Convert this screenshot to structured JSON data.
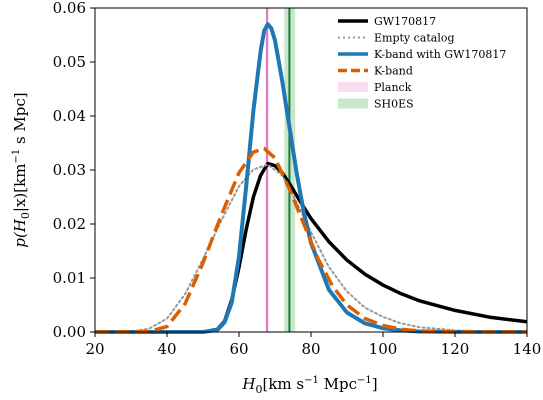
{
  "chart_data": {
    "type": "line",
    "xlabel": "H_0[km s^-1 Mpc^-1]",
    "xlabel_parts": {
      "main": "H",
      "sub": "0",
      "bracket": "[km s",
      "exp1": "−1",
      "mid": " Mpc",
      "exp2": "−1",
      "end": "]"
    },
    "ylabel": "p(H_0|x)[km^-1 s Mpc]",
    "ylabel_parts": {
      "pre": "p(H",
      "sub": "0",
      "mid": "|x)[km",
      "exp": "−1",
      "post": " s Mpc]"
    },
    "xlim": [
      20,
      140
    ],
    "ylim": [
      0,
      0.06
    ],
    "xticks": [
      20,
      40,
      60,
      80,
      100,
      120,
      140
    ],
    "xtick_labels": [
      "20",
      "40",
      "60",
      "80",
      "100",
      "120",
      "140"
    ],
    "yticks": [
      0.0,
      0.01,
      0.02,
      0.03,
      0.04,
      0.05,
      0.06
    ],
    "ytick_labels": [
      "0.00",
      "0.01",
      "0.02",
      "0.03",
      "0.04",
      "0.05",
      "0.06"
    ],
    "grid": false,
    "legend_position": "top-right",
    "bands": [
      {
        "name": "Planck",
        "range": [
          67.4,
          68.2
        ],
        "center": 67.8,
        "color": "#e377c2",
        "fill_alpha": 0.25
      },
      {
        "name": "SH0ES",
        "range": [
          72.6,
          75.6
        ],
        "center": 74.0,
        "color": "#2ca02c",
        "fill_alpha": 0.25,
        "center_color": "#1b7a3b"
      }
    ],
    "series": [
      {
        "name": "GW170817",
        "color": "#000000",
        "style": "solid",
        "width": 3.5,
        "x": [
          20,
          40,
          50,
          54,
          56,
          58,
          60,
          62,
          64,
          66,
          68,
          70,
          72,
          74,
          76,
          78,
          80,
          85,
          90,
          95,
          100,
          105,
          110,
          120,
          130,
          140
        ],
        "y": [
          0.0,
          0.0,
          0.0,
          0.0005,
          0.002,
          0.006,
          0.012,
          0.019,
          0.025,
          0.029,
          0.0312,
          0.0308,
          0.0295,
          0.0275,
          0.0253,
          0.0231,
          0.021,
          0.0167,
          0.0133,
          0.0107,
          0.0087,
          0.0071,
          0.0058,
          0.004,
          0.0027,
          0.0019
        ]
      },
      {
        "name": "Empty catalog",
        "color": "#999999",
        "style": "dotted",
        "width": 2,
        "x": [
          20,
          30,
          35,
          40,
          45,
          50,
          55,
          60,
          64,
          68,
          72,
          76,
          80,
          85,
          90,
          95,
          100,
          105,
          110,
          120,
          130,
          140
        ],
        "y": [
          0.0,
          0.0001,
          0.0006,
          0.0025,
          0.007,
          0.0135,
          0.0205,
          0.027,
          0.0301,
          0.031,
          0.029,
          0.024,
          0.0185,
          0.012,
          0.0075,
          0.0045,
          0.0028,
          0.0016,
          0.0009,
          0.0003,
          0.0001,
          0.0
        ]
      },
      {
        "name": "K-band with GW170817",
        "color": "#1f77b4",
        "style": "solid",
        "width": 4,
        "x": [
          20,
          50,
          54,
          56,
          58,
          60,
          62,
          64,
          66,
          67,
          68,
          69,
          70,
          72,
          74,
          76,
          78,
          80,
          85,
          90,
          95,
          100,
          105,
          110,
          120,
          130,
          140
        ],
        "y": [
          0.0,
          0.0,
          0.0004,
          0.0018,
          0.0055,
          0.014,
          0.027,
          0.041,
          0.052,
          0.0558,
          0.057,
          0.0562,
          0.054,
          0.0465,
          0.038,
          0.0295,
          0.0222,
          0.0165,
          0.0078,
          0.0036,
          0.0016,
          0.0007,
          0.0003,
          0.0001,
          0.0,
          0.0,
          0.0
        ]
      },
      {
        "name": "K-band",
        "color": "#d95f02",
        "style": "dashed",
        "width": 3.5,
        "x": [
          20,
          30,
          35,
          40,
          45,
          50,
          55,
          60,
          64,
          67,
          70,
          74,
          78,
          82,
          86,
          90,
          95,
          100,
          105,
          110,
          120,
          130,
          140
        ],
        "y": [
          0.0,
          0.0,
          0.0001,
          0.001,
          0.0052,
          0.0128,
          0.0215,
          0.0295,
          0.0333,
          0.034,
          0.0322,
          0.0265,
          0.02,
          0.0135,
          0.0085,
          0.005,
          0.0025,
          0.0012,
          0.0005,
          0.0002,
          0.0,
          0.0,
          0.0
        ]
      }
    ]
  }
}
